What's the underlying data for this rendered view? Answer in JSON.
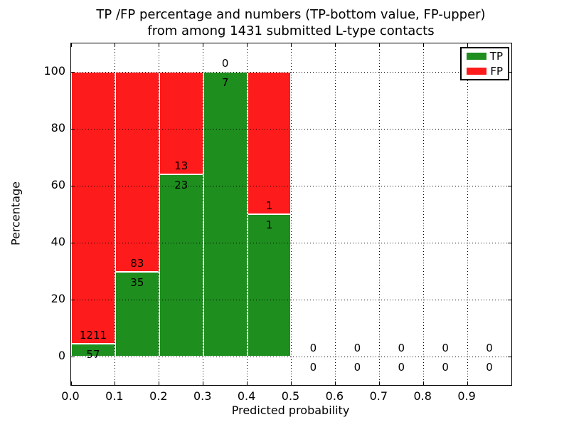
{
  "figure": {
    "title_lines": [
      "TP /FP percentage and numbers (TP-bottom value, FP-upper)",
      "from among 1431 submitted L-type contacts"
    ]
  },
  "chart_data": {
    "type": "bar",
    "stacked": true,
    "normalized_to_percent": true,
    "title": "TP /FP percentage and numbers (TP-bottom value, FP-upper) from among 1431 submitted L-type contacts",
    "xlabel": "Predicted probability",
    "ylabel": "Percentage",
    "xlim": [
      0.0,
      1.0
    ],
    "ylim": [
      -10,
      110
    ],
    "xtick_labels": [
      "0.0",
      "0.1",
      "0.2",
      "0.3",
      "0.4",
      "0.5",
      "0.6",
      "0.7",
      "0.8",
      "0.9"
    ],
    "ytick_labels": [
      "0",
      "20",
      "40",
      "60",
      "80",
      "100"
    ],
    "grid": "dotted",
    "bin_width": 0.1,
    "bin_starts": [
      0.0,
      0.1,
      0.2,
      0.3,
      0.4,
      0.5,
      0.6,
      0.7,
      0.8,
      0.9
    ],
    "series": [
      {
        "name": "TP",
        "color": "#1e8e1e",
        "counts": [
          57,
          35,
          23,
          7,
          1,
          0,
          0,
          0,
          0,
          0
        ]
      },
      {
        "name": "FP",
        "color": "#fe1b1b",
        "counts": [
          1211,
          83,
          13,
          0,
          1,
          0,
          0,
          0,
          0,
          0
        ]
      }
    ],
    "bar_heights_percent": {
      "TP": [
        4.5,
        29.7,
        63.9,
        100.0,
        50.0,
        0,
        0,
        0,
        0,
        0
      ],
      "FP": [
        95.5,
        70.3,
        36.1,
        0.0,
        50.0,
        0,
        0,
        0,
        0,
        0
      ]
    },
    "legend": {
      "position": "upper right",
      "entries": [
        "TP",
        "FP"
      ]
    }
  }
}
